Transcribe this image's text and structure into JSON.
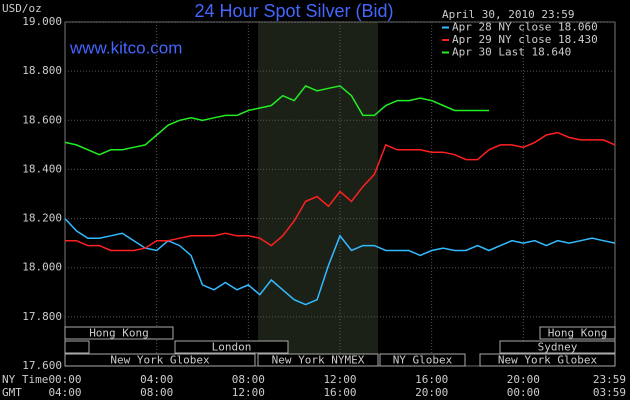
{
  "chart_data": {
    "type": "line",
    "title": "24 Hour Spot Silver (Bid)",
    "timestamp": "April 30, 2010 23:59",
    "source": "www.kitco.com",
    "y_label": "USD/oz",
    "x_row_labels": [
      "NY Time",
      "GMT"
    ],
    "x": [
      0,
      0.5,
      1,
      1.5,
      2,
      2.5,
      3,
      3.5,
      4,
      4.5,
      5,
      5.5,
      6,
      6.5,
      7,
      7.5,
      8,
      8.5,
      9,
      9.5,
      10,
      10.5,
      11,
      11.5,
      12,
      12.5,
      13,
      13.5,
      14,
      14.5,
      15,
      15.5,
      16,
      16.5,
      17,
      17.5,
      18,
      18.5,
      19,
      19.5,
      20,
      20.5,
      21,
      21.5,
      22,
      22.5,
      23,
      23.5,
      24
    ],
    "xlim": [
      0,
      24
    ],
    "xticks": [
      {
        "value": 0,
        "label": "00:00"
      },
      {
        "value": 4,
        "label": "04:00"
      },
      {
        "value": 8,
        "label": "08:00"
      },
      {
        "value": 12,
        "label": "12:00"
      },
      {
        "value": 16,
        "label": "16:00"
      },
      {
        "value": 20,
        "label": "20:00"
      },
      {
        "value": 23.98,
        "label": "23:59"
      }
    ],
    "gmt_tick_labels": [
      "04:00",
      "08:00",
      "12:00",
      "16:00",
      "20:00",
      "00:00",
      "03:59"
    ],
    "ylim": [
      17.6,
      19.0
    ],
    "yticks": [
      {
        "value": 17.6,
        "label": "17.600"
      },
      {
        "value": 17.8,
        "label": "17.800"
      },
      {
        "value": 18.0,
        "label": "18.000"
      },
      {
        "value": 18.2,
        "label": "18.200"
      },
      {
        "value": 18.4,
        "label": "18.400"
      },
      {
        "value": 18.6,
        "label": "18.600"
      },
      {
        "value": 18.8,
        "label": "18.800"
      },
      {
        "value": 19.0,
        "label": "19.000"
      }
    ],
    "grid": true,
    "legend": "top-right",
    "sessions": [
      "Hong Kong",
      "Hong Kong",
      "London",
      "Sydney",
      "New York Globex",
      "New York NYMEX",
      "NY Globex",
      "New York Globex"
    ],
    "series": [
      {
        "name": "Apr 28 NY close 18.060",
        "color": "#33bbff",
        "values": [
          18.2,
          18.15,
          18.12,
          18.12,
          18.13,
          18.14,
          18.11,
          18.08,
          18.07,
          18.11,
          18.09,
          18.05,
          17.93,
          17.91,
          17.94,
          17.91,
          17.93,
          17.89,
          17.95,
          17.91,
          17.87,
          17.85,
          17.87,
          18.01,
          18.13,
          18.07,
          18.09,
          18.09,
          18.07,
          18.07,
          18.07,
          18.05,
          18.07,
          18.08,
          18.07,
          18.07,
          18.09,
          18.07,
          18.09,
          18.11,
          18.1,
          18.11,
          18.09,
          18.11,
          18.1,
          18.11,
          18.12,
          18.11,
          18.1
        ]
      },
      {
        "name": "Apr 29 NY close 18.430",
        "color": "#ff2020",
        "values": [
          18.11,
          18.11,
          18.09,
          18.09,
          18.07,
          18.07,
          18.07,
          18.08,
          18.11,
          18.11,
          18.12,
          18.13,
          18.13,
          18.13,
          18.14,
          18.13,
          18.13,
          18.12,
          18.09,
          18.13,
          18.19,
          18.27,
          18.29,
          18.25,
          18.31,
          18.27,
          18.33,
          18.38,
          18.5,
          18.48,
          18.48,
          18.48,
          18.47,
          18.47,
          18.46,
          18.44,
          18.44,
          18.48,
          18.5,
          18.5,
          18.49,
          18.51,
          18.54,
          18.55,
          18.53,
          18.52,
          18.52,
          18.52,
          18.5
        ]
      },
      {
        "name": "Apr 30 Last 18.640",
        "color": "#22ee22",
        "values": [
          18.51,
          18.5,
          18.48,
          18.46,
          18.48,
          18.48,
          18.49,
          18.5,
          18.54,
          18.58,
          18.6,
          18.61,
          18.6,
          18.61,
          18.62,
          18.62,
          18.64,
          18.65,
          18.66,
          18.7,
          18.68,
          18.74,
          18.72,
          18.73,
          18.74,
          18.7,
          18.62,
          18.62,
          18.66,
          18.68,
          18.68,
          18.69,
          18.68,
          18.66,
          18.64,
          18.64,
          18.64,
          18.64,
          null,
          null,
          null,
          null,
          null,
          null,
          null,
          null,
          null,
          null,
          null
        ]
      }
    ]
  }
}
